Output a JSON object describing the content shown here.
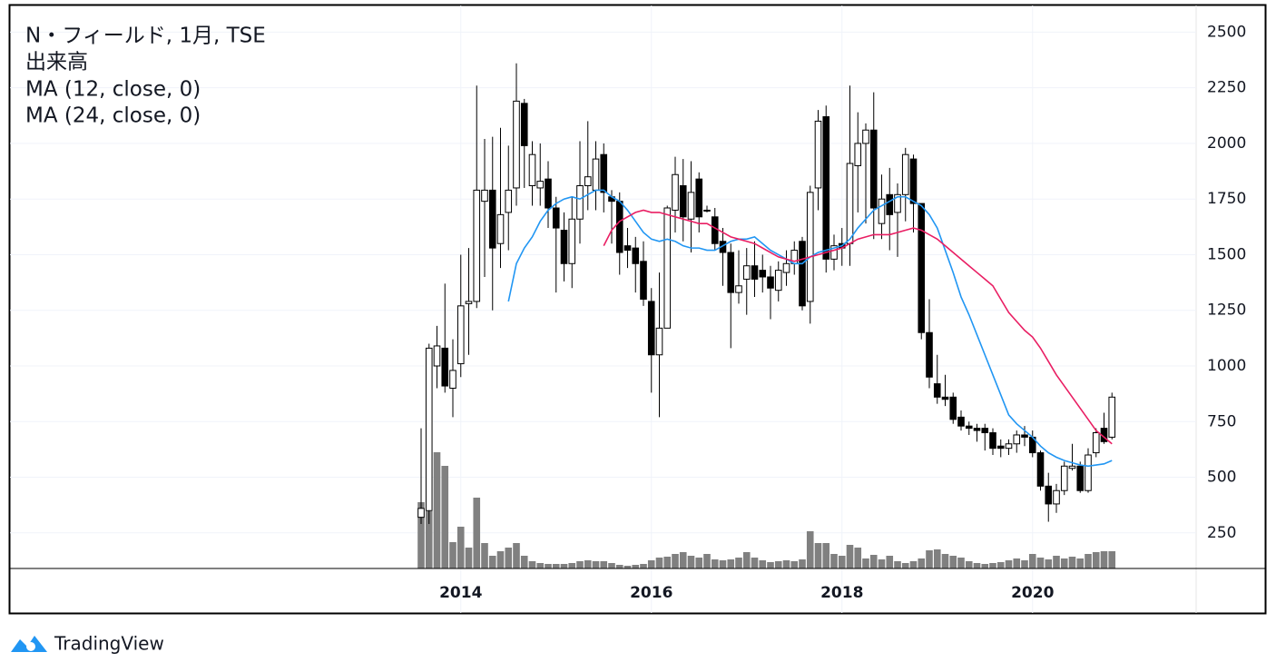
{
  "chart_data": {
    "type": "candlestick",
    "title": "N・フィールド, 1月, TSE",
    "brand": "TradingView",
    "categories": [
      null,
      null,
      null,
      null,
      null,
      "2014",
      null,
      null,
      null,
      null,
      null,
      null,
      null,
      null,
      null,
      null,
      null,
      null,
      null,
      null,
      null,
      null,
      null,
      null,
      null,
      null,
      null,
      null,
      null,
      "2016",
      null,
      null,
      null,
      null,
      null,
      null,
      null,
      null,
      null,
      null,
      null,
      null,
      null,
      null,
      null,
      null,
      null,
      null,
      null,
      null,
      null,
      null,
      null,
      "2018",
      null,
      null,
      null,
      null,
      null,
      null,
      null,
      null,
      null,
      null,
      null,
      null,
      null,
      null,
      null,
      null,
      null,
      null,
      null,
      null,
      null,
      null,
      null,
      "2020",
      null,
      null,
      null,
      null,
      null,
      null,
      null,
      null,
      null,
      null
    ],
    "open": [
      320,
      350,
      1000,
      1080,
      900,
      1010,
      1280,
      1290,
      1740,
      1790,
      1550,
      1690,
      1800,
      2180,
      1810,
      1800,
      1840,
      1710,
      1610,
      1460,
      1660,
      1810,
      1790,
      1950,
      1760,
      1740,
      1540,
      1530,
      1470,
      1290,
      1050,
      1170,
      1700,
      1810,
      1660,
      1840,
      1700,
      1670,
      1560,
      1510,
      1330,
      1390,
      1450,
      1430,
      1400,
      1340,
      1420,
      1460,
      1560,
      1290,
      1800,
      2120,
      1480,
      1550,
      1550,
      1900,
      2000,
      2060,
      1640,
      1770,
      1690,
      1770,
      1930,
      1730,
      1150,
      920,
      860,
      860,
      770,
      730,
      720,
      720,
      700,
      640,
      630,
      650,
      690,
      680,
      610,
      460,
      380,
      440,
      540,
      550,
      440,
      610,
      720,
      680
    ],
    "high": [
      720,
      1100,
      1180,
      1370,
      1120,
      1500,
      1530,
      2260,
      2020,
      2030,
      2070,
      1990,
      2360,
      2200,
      2010,
      2000,
      1920,
      1760,
      1690,
      1760,
      2010,
      2100,
      2010,
      2000,
      1790,
      1780,
      1620,
      1580,
      1560,
      1350,
      1420,
      1720,
      1940,
      1930,
      1920,
      1870,
      1720,
      1710,
      1620,
      1550,
      1520,
      1530,
      1560,
      1500,
      1450,
      1470,
      1520,
      1560,
      1580,
      1810,
      2150,
      2170,
      1590,
      1620,
      2260,
      2140,
      2090,
      2230,
      1860,
      1890,
      1820,
      1980,
      1950,
      1730,
      1300,
      1050,
      960,
      880,
      800,
      750,
      740,
      740,
      720,
      670,
      670,
      710,
      730,
      710,
      620,
      520,
      470,
      570,
      650,
      570,
      630,
      720,
      790,
      880
    ],
    "low": [
      290,
      290,
      900,
      880,
      770,
      950,
      1050,
      1260,
      1400,
      1250,
      1440,
      1520,
      1720,
      1800,
      1720,
      1720,
      1620,
      1330,
      1380,
      1350,
      1550,
      1700,
      1700,
      1690,
      1550,
      1410,
      1440,
      1330,
      1270,
      880,
      770,
      1170,
      1600,
      1560,
      1510,
      1600,
      1690,
      1520,
      1360,
      1080,
      1280,
      1230,
      1310,
      1330,
      1210,
      1290,
      1360,
      1410,
      1250,
      1190,
      1700,
      1420,
      1430,
      1450,
      1450,
      1690,
      1640,
      1570,
      1570,
      1520,
      1490,
      1650,
      1600,
      1120,
      900,
      830,
      820,
      740,
      710,
      690,
      660,
      620,
      600,
      590,
      600,
      610,
      640,
      590,
      440,
      300,
      340,
      420,
      530,
      430,
      430,
      590,
      650,
      670
    ],
    "close": [
      360,
      1080,
      1090,
      910,
      980,
      1270,
      1290,
      1790,
      1790,
      1530,
      1680,
      1790,
      2190,
      1990,
      1950,
      1830,
      1710,
      1620,
      1460,
      1660,
      1810,
      1850,
      1930,
      1780,
      1740,
      1510,
      1520,
      1460,
      1300,
      1050,
      1170,
      1710,
      1860,
      1670,
      1780,
      1670,
      1700,
      1550,
      1510,
      1330,
      1360,
      1450,
      1390,
      1400,
      1350,
      1430,
      1460,
      1520,
      1270,
      1780,
      2100,
      1480,
      1540,
      1530,
      1910,
      2000,
      2060,
      1710,
      1750,
      1680,
      1770,
      1950,
      1730,
      1150,
      950,
      860,
      850,
      760,
      730,
      720,
      710,
      700,
      630,
      630,
      650,
      690,
      680,
      610,
      460,
      380,
      440,
      550,
      550,
      440,
      600,
      700,
      660,
      860
    ],
    "up_color": "#ffffff",
    "down_color": "#000000",
    "volume": {
      "name": "出来高",
      "color": "#808080",
      "vlim": [
        0,
        300
      ],
      "values": [
        73,
        63,
        128,
        113,
        29,
        46,
        23,
        78,
        28,
        14,
        19,
        23,
        28,
        14,
        8,
        6,
        5,
        5,
        5,
        6,
        8,
        9,
        8,
        8,
        6,
        4,
        3,
        4,
        5,
        9,
        12,
        13,
        16,
        18,
        14,
        12,
        16,
        10,
        9,
        10,
        12,
        18,
        12,
        9,
        7,
        8,
        9,
        8,
        10,
        41,
        28,
        28,
        16,
        14,
        26,
        23,
        11,
        15,
        10,
        14,
        8,
        6,
        8,
        11,
        20,
        21,
        16,
        14,
        12,
        8,
        6,
        5,
        6,
        7,
        9,
        11,
        9,
        16,
        12,
        10,
        14,
        11,
        13,
        11,
        16,
        18,
        19,
        19
      ]
    },
    "series": [
      {
        "name": "MA (12, close, 0)",
        "color": "#2196f3",
        "values": [
          null,
          null,
          null,
          null,
          null,
          null,
          null,
          null,
          null,
          null,
          null,
          1290,
          1460,
          1530,
          1580,
          1650,
          1700,
          1730,
          1750,
          1760,
          1750,
          1770,
          1790,
          1790,
          1760,
          1740,
          1700,
          1650,
          1600,
          1570,
          1560,
          1570,
          1560,
          1540,
          1530,
          1530,
          1520,
          1520,
          1540,
          1560,
          1570,
          1570,
          1580,
          1550,
          1520,
          1500,
          1480,
          1460,
          1460,
          1490,
          1510,
          1520,
          1530,
          1540,
          1570,
          1620,
          1660,
          1700,
          1720,
          1740,
          1760,
          1760,
          1740,
          1720,
          1680,
          1620,
          1520,
          1420,
          1310,
          1230,
          1140,
          1050,
          960,
          870,
          780,
          740,
          710,
          680,
          640,
          610,
          590,
          575,
          565,
          555,
          550,
          555,
          560,
          575
        ]
      },
      {
        "name": "MA (24, close, 0)",
        "color": "#e91e63",
        "values": [
          null,
          null,
          null,
          null,
          null,
          null,
          null,
          null,
          null,
          null,
          null,
          null,
          null,
          null,
          null,
          null,
          null,
          null,
          null,
          null,
          null,
          null,
          null,
          1540,
          1610,
          1650,
          1670,
          1690,
          1700,
          1690,
          1690,
          1680,
          1670,
          1660,
          1650,
          1640,
          1640,
          1620,
          1600,
          1580,
          1570,
          1560,
          1550,
          1530,
          1510,
          1490,
          1480,
          1470,
          1480,
          1490,
          1500,
          1510,
          1520,
          1530,
          1550,
          1570,
          1580,
          1590,
          1590,
          1590,
          1600,
          1610,
          1620,
          1610,
          1590,
          1570,
          1540,
          1510,
          1480,
          1450,
          1420,
          1390,
          1360,
          1300,
          1240,
          1200,
          1160,
          1130,
          1080,
          1020,
          960,
          910,
          860,
          810,
          760,
          710,
          680,
          650
        ]
      }
    ],
    "ylim": [
      90,
      2620
    ],
    "yticks": [
      250,
      500,
      750,
      1000,
      1250,
      1500,
      1750,
      2000,
      2250,
      2500
    ],
    "grid": true
  }
}
